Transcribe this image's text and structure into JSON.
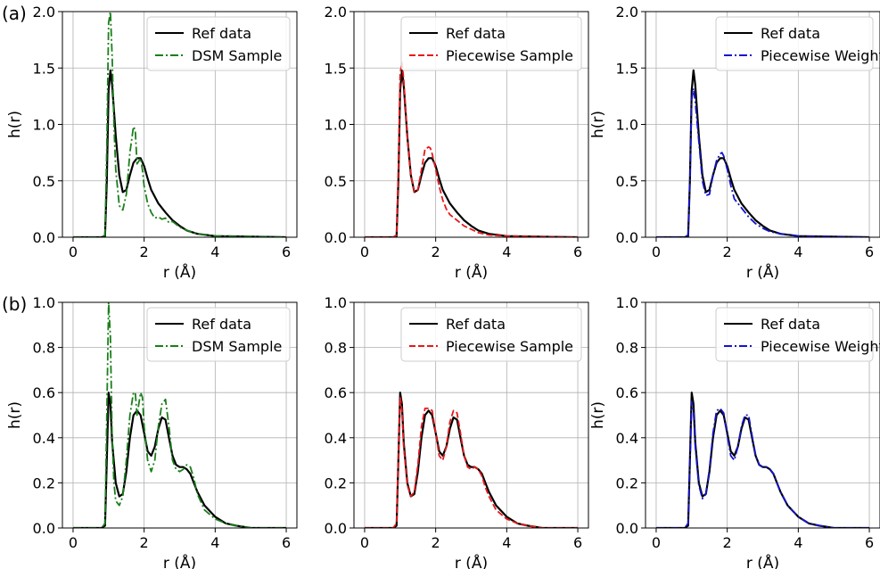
{
  "figure": {
    "row_labels": [
      "(a)",
      "(b)"
    ]
  },
  "colors": {
    "ref": "#000000",
    "dsm": "#1a7f1a",
    "piecewise_sample": "#e8181b",
    "piecewise_weighted": "#1414cc"
  },
  "chart_data": [
    {
      "type": "line",
      "row": 0,
      "col": 0,
      "xlabel": "r (Å)",
      "ylabel": "h(r)",
      "xlim": [
        -0.3,
        6.3
      ],
      "ylim": [
        0,
        2.0
      ],
      "xticks": [
        0,
        2,
        4,
        6
      ],
      "yticks": [
        0.0,
        0.5,
        1.0,
        1.5,
        2.0
      ],
      "grid": true,
      "legend": "top-right",
      "series": [
        {
          "name": "Ref data",
          "style": "solid",
          "color": "#000000",
          "x": [
            0,
            0.8,
            0.9,
            0.95,
            1.0,
            1.05,
            1.1,
            1.2,
            1.3,
            1.4,
            1.5,
            1.6,
            1.7,
            1.8,
            1.9,
            2.0,
            2.1,
            2.2,
            2.4,
            2.6,
            2.8,
            3.0,
            3.2,
            3.5,
            4.0,
            6.0
          ],
          "y": [
            0,
            0,
            0.01,
            0.5,
            1.3,
            1.48,
            1.35,
            0.9,
            0.55,
            0.4,
            0.42,
            0.55,
            0.66,
            0.7,
            0.7,
            0.63,
            0.52,
            0.42,
            0.3,
            0.22,
            0.15,
            0.1,
            0.06,
            0.03,
            0.01,
            0
          ]
        },
        {
          "name": "DSM Sample",
          "style": "dashdot",
          "color": "#1a7f1a",
          "x": [
            0,
            0.8,
            0.9,
            0.95,
            1.0,
            1.05,
            1.1,
            1.15,
            1.2,
            1.3,
            1.4,
            1.5,
            1.6,
            1.7,
            1.75,
            1.8,
            1.9,
            1.95,
            2.0,
            2.1,
            2.2,
            2.3,
            2.4,
            2.5,
            2.6,
            2.7,
            2.8,
            3.0,
            3.2,
            3.5,
            4.0,
            6.0
          ],
          "y": [
            0,
            0,
            0.02,
            0.8,
            1.9,
            2.0,
            1.6,
            1.0,
            0.6,
            0.28,
            0.24,
            0.38,
            0.75,
            0.98,
            0.95,
            0.65,
            0.7,
            0.6,
            0.45,
            0.3,
            0.22,
            0.17,
            0.18,
            0.16,
            0.17,
            0.13,
            0.14,
            0.09,
            0.06,
            0.03,
            0.01,
            0
          ]
        }
      ]
    },
    {
      "type": "line",
      "row": 0,
      "col": 1,
      "xlabel": "r (Å)",
      "ylabel": "",
      "xlim": [
        -0.3,
        6.3
      ],
      "ylim": [
        0,
        2.0
      ],
      "xticks": [
        0,
        2,
        4,
        6
      ],
      "yticks": [
        0.0,
        0.5,
        1.0,
        1.5,
        2.0
      ],
      "grid": true,
      "legend": "top-right",
      "series": [
        {
          "name": "Ref data",
          "style": "solid",
          "color": "#000000",
          "x": [
            0,
            0.8,
            0.9,
            0.95,
            1.0,
            1.05,
            1.1,
            1.2,
            1.3,
            1.4,
            1.5,
            1.6,
            1.7,
            1.8,
            1.9,
            2.0,
            2.1,
            2.2,
            2.4,
            2.6,
            2.8,
            3.0,
            3.2,
            3.5,
            4.0,
            6.0
          ],
          "y": [
            0,
            0,
            0.01,
            0.5,
            1.3,
            1.48,
            1.35,
            0.9,
            0.55,
            0.4,
            0.42,
            0.55,
            0.66,
            0.7,
            0.7,
            0.63,
            0.52,
            0.42,
            0.3,
            0.22,
            0.15,
            0.1,
            0.06,
            0.03,
            0.01,
            0
          ]
        },
        {
          "name": "Piecewise Sample",
          "style": "dashed",
          "color": "#e8181b",
          "x": [
            0,
            0.8,
            0.9,
            0.95,
            1.0,
            1.05,
            1.1,
            1.2,
            1.3,
            1.4,
            1.5,
            1.6,
            1.7,
            1.8,
            1.85,
            1.9,
            2.0,
            2.1,
            2.2,
            2.3,
            2.4,
            2.6,
            2.8,
            3.0,
            3.2,
            3.5,
            4.0,
            6.0
          ],
          "y": [
            0,
            0,
            0.02,
            0.6,
            1.45,
            1.55,
            1.4,
            0.9,
            0.55,
            0.4,
            0.42,
            0.6,
            0.78,
            0.8,
            0.79,
            0.74,
            0.6,
            0.45,
            0.33,
            0.25,
            0.2,
            0.15,
            0.1,
            0.07,
            0.04,
            0.02,
            0.01,
            0
          ]
        }
      ]
    },
    {
      "type": "line",
      "row": 0,
      "col": 2,
      "xlabel": "r (Å)",
      "ylabel": "h(r)",
      "xlim": [
        -0.3,
        6.3
      ],
      "ylim": [
        0,
        2.0
      ],
      "xticks": [
        0,
        2,
        4,
        6
      ],
      "yticks": [
        0.0,
        0.5,
        1.0,
        1.5,
        2.0
      ],
      "grid": true,
      "legend": "top-right",
      "series": [
        {
          "name": "Ref data",
          "style": "solid",
          "color": "#000000",
          "x": [
            0,
            0.8,
            0.9,
            0.95,
            1.0,
            1.05,
            1.1,
            1.2,
            1.3,
            1.4,
            1.5,
            1.6,
            1.7,
            1.8,
            1.9,
            2.0,
            2.1,
            2.2,
            2.4,
            2.6,
            2.8,
            3.0,
            3.2,
            3.5,
            4.0,
            6.0
          ],
          "y": [
            0,
            0,
            0.01,
            0.5,
            1.3,
            1.48,
            1.35,
            0.9,
            0.55,
            0.4,
            0.42,
            0.55,
            0.66,
            0.7,
            0.7,
            0.63,
            0.52,
            0.42,
            0.3,
            0.22,
            0.15,
            0.1,
            0.06,
            0.03,
            0.01,
            0
          ]
        },
        {
          "name": "Piecewise Weighted",
          "style": "dashdot",
          "color": "#1414cc",
          "x": [
            0,
            0.8,
            0.9,
            0.95,
            1.0,
            1.05,
            1.1,
            1.2,
            1.3,
            1.4,
            1.5,
            1.6,
            1.7,
            1.8,
            1.85,
            1.9,
            2.0,
            2.1,
            2.2,
            2.4,
            2.6,
            2.8,
            3.0,
            3.2,
            3.5,
            4.0,
            6.0
          ],
          "y": [
            0,
            0,
            0.02,
            0.5,
            1.22,
            1.32,
            1.2,
            0.85,
            0.5,
            0.37,
            0.38,
            0.55,
            0.68,
            0.74,
            0.75,
            0.72,
            0.6,
            0.46,
            0.34,
            0.26,
            0.18,
            0.12,
            0.08,
            0.05,
            0.03,
            0.01,
            0
          ]
        }
      ]
    },
    {
      "type": "line",
      "row": 1,
      "col": 0,
      "xlabel": "r (Å)",
      "ylabel": "h(r)",
      "xlim": [
        -0.3,
        6.3
      ],
      "ylim": [
        0,
        1.0
      ],
      "xticks": [
        0,
        2,
        4,
        6
      ],
      "yticks": [
        0.0,
        0.2,
        0.4,
        0.6,
        0.8,
        1.0
      ],
      "grid": true,
      "legend": "top-right",
      "series": [
        {
          "name": "Ref data",
          "style": "solid",
          "color": "#000000",
          "x": [
            0,
            0.8,
            0.9,
            0.95,
            1.0,
            1.05,
            1.1,
            1.2,
            1.3,
            1.4,
            1.5,
            1.6,
            1.7,
            1.8,
            1.9,
            2.0,
            2.1,
            2.2,
            2.3,
            2.4,
            2.5,
            2.6,
            2.7,
            2.8,
            2.9,
            3.0,
            3.1,
            3.2,
            3.3,
            3.4,
            3.5,
            3.7,
            4.0,
            4.3,
            4.6,
            5.0,
            6.0
          ],
          "y": [
            0,
            0,
            0.01,
            0.3,
            0.6,
            0.55,
            0.38,
            0.2,
            0.14,
            0.15,
            0.25,
            0.4,
            0.5,
            0.52,
            0.5,
            0.42,
            0.34,
            0.32,
            0.36,
            0.44,
            0.49,
            0.48,
            0.4,
            0.32,
            0.28,
            0.27,
            0.27,
            0.26,
            0.24,
            0.2,
            0.16,
            0.1,
            0.05,
            0.02,
            0.01,
            0,
            0
          ]
        },
        {
          "name": "DSM Sample",
          "style": "dashdot",
          "color": "#1a7f1a",
          "x": [
            0,
            0.8,
            0.9,
            0.95,
            1.0,
            1.05,
            1.1,
            1.15,
            1.2,
            1.3,
            1.4,
            1.5,
            1.6,
            1.7,
            1.75,
            1.8,
            1.85,
            1.9,
            1.95,
            2.0,
            2.1,
            2.2,
            2.3,
            2.4,
            2.5,
            2.6,
            2.7,
            2.8,
            2.9,
            3.0,
            3.1,
            3.2,
            3.3,
            3.4,
            3.5,
            3.7,
            4.0,
            4.3,
            4.6,
            5.0,
            6.0
          ],
          "y": [
            0,
            0,
            0.02,
            0.5,
            1.0,
            0.85,
            0.4,
            0.2,
            0.12,
            0.1,
            0.14,
            0.3,
            0.5,
            0.6,
            0.6,
            0.5,
            0.55,
            0.6,
            0.58,
            0.45,
            0.3,
            0.25,
            0.3,
            0.45,
            0.55,
            0.57,
            0.45,
            0.3,
            0.26,
            0.25,
            0.26,
            0.28,
            0.27,
            0.22,
            0.15,
            0.08,
            0.04,
            0.02,
            0.01,
            0,
            0
          ]
        }
      ]
    },
    {
      "type": "line",
      "row": 1,
      "col": 1,
      "xlabel": "r (Å)",
      "ylabel": "",
      "xlim": [
        -0.3,
        6.3
      ],
      "ylim": [
        0,
        1.0
      ],
      "xticks": [
        0,
        2,
        4,
        6
      ],
      "yticks": [
        0.0,
        0.2,
        0.4,
        0.6,
        0.8,
        1.0
      ],
      "grid": true,
      "legend": "top-right",
      "series": [
        {
          "name": "Ref data",
          "style": "solid",
          "color": "#000000",
          "x": [
            0,
            0.8,
            0.9,
            0.95,
            1.0,
            1.05,
            1.1,
            1.2,
            1.3,
            1.4,
            1.5,
            1.6,
            1.7,
            1.8,
            1.9,
            2.0,
            2.1,
            2.2,
            2.3,
            2.4,
            2.5,
            2.6,
            2.7,
            2.8,
            2.9,
            3.0,
            3.1,
            3.2,
            3.3,
            3.4,
            3.5,
            3.7,
            4.0,
            4.3,
            4.6,
            5.0,
            6.0
          ],
          "y": [
            0,
            0,
            0.01,
            0.3,
            0.6,
            0.55,
            0.38,
            0.2,
            0.14,
            0.15,
            0.25,
            0.4,
            0.5,
            0.52,
            0.5,
            0.42,
            0.34,
            0.32,
            0.36,
            0.44,
            0.49,
            0.48,
            0.4,
            0.32,
            0.28,
            0.27,
            0.27,
            0.26,
            0.24,
            0.2,
            0.16,
            0.1,
            0.05,
            0.02,
            0.01,
            0,
            0
          ]
        },
        {
          "name": "Piecewise Sample",
          "style": "dashed",
          "color": "#e8181b",
          "x": [
            0,
            0.8,
            0.9,
            0.95,
            1.0,
            1.05,
            1.1,
            1.2,
            1.3,
            1.4,
            1.5,
            1.6,
            1.7,
            1.8,
            1.9,
            2.0,
            2.1,
            2.2,
            2.3,
            2.4,
            2.5,
            2.6,
            2.7,
            2.8,
            2.9,
            3.0,
            3.1,
            3.2,
            3.3,
            3.4,
            3.5,
            3.7,
            4.0,
            4.3,
            4.6,
            5.0,
            6.0
          ],
          "y": [
            0,
            0,
            0.02,
            0.32,
            0.58,
            0.52,
            0.36,
            0.19,
            0.14,
            0.16,
            0.28,
            0.45,
            0.53,
            0.53,
            0.52,
            0.42,
            0.32,
            0.3,
            0.36,
            0.47,
            0.52,
            0.51,
            0.42,
            0.32,
            0.27,
            0.26,
            0.27,
            0.26,
            0.23,
            0.18,
            0.14,
            0.08,
            0.04,
            0.02,
            0.01,
            0,
            0
          ]
        }
      ]
    },
    {
      "type": "line",
      "row": 1,
      "col": 2,
      "xlabel": "r (Å)",
      "ylabel": "h(r)",
      "xlim": [
        -0.3,
        6.3
      ],
      "ylim": [
        0,
        1.0
      ],
      "xticks": [
        0,
        2,
        4,
        6
      ],
      "yticks": [
        0.0,
        0.2,
        0.4,
        0.6,
        0.8,
        1.0
      ],
      "grid": true,
      "legend": "top-right",
      "series": [
        {
          "name": "Ref data",
          "style": "solid",
          "color": "#000000",
          "x": [
            0,
            0.8,
            0.9,
            0.95,
            1.0,
            1.05,
            1.1,
            1.2,
            1.3,
            1.4,
            1.5,
            1.6,
            1.7,
            1.8,
            1.9,
            2.0,
            2.1,
            2.2,
            2.3,
            2.4,
            2.5,
            2.6,
            2.7,
            2.8,
            2.9,
            3.0,
            3.1,
            3.2,
            3.3,
            3.4,
            3.5,
            3.7,
            4.0,
            4.3,
            4.6,
            5.0,
            6.0
          ],
          "y": [
            0,
            0,
            0.01,
            0.3,
            0.6,
            0.55,
            0.38,
            0.2,
            0.14,
            0.15,
            0.25,
            0.4,
            0.5,
            0.52,
            0.5,
            0.42,
            0.34,
            0.32,
            0.36,
            0.44,
            0.49,
            0.48,
            0.4,
            0.32,
            0.28,
            0.27,
            0.27,
            0.26,
            0.24,
            0.2,
            0.16,
            0.1,
            0.05,
            0.02,
            0.01,
            0,
            0
          ]
        },
        {
          "name": "Piecewise Weighted",
          "style": "dashdot",
          "color": "#1414cc",
          "x": [
            0,
            0.8,
            0.9,
            0.95,
            1.0,
            1.05,
            1.1,
            1.2,
            1.3,
            1.4,
            1.5,
            1.6,
            1.7,
            1.8,
            1.9,
            2.0,
            2.1,
            2.2,
            2.3,
            2.4,
            2.5,
            2.6,
            2.7,
            2.8,
            2.9,
            3.0,
            3.1,
            3.2,
            3.3,
            3.4,
            3.5,
            3.7,
            4.0,
            4.3,
            4.6,
            5.0,
            6.0
          ],
          "y": [
            0,
            0,
            0.02,
            0.28,
            0.56,
            0.52,
            0.36,
            0.19,
            0.13,
            0.15,
            0.26,
            0.42,
            0.52,
            0.53,
            0.51,
            0.41,
            0.32,
            0.3,
            0.36,
            0.45,
            0.5,
            0.5,
            0.41,
            0.32,
            0.28,
            0.27,
            0.27,
            0.26,
            0.24,
            0.2,
            0.16,
            0.1,
            0.05,
            0.02,
            0.01,
            0,
            0
          ]
        }
      ]
    }
  ]
}
